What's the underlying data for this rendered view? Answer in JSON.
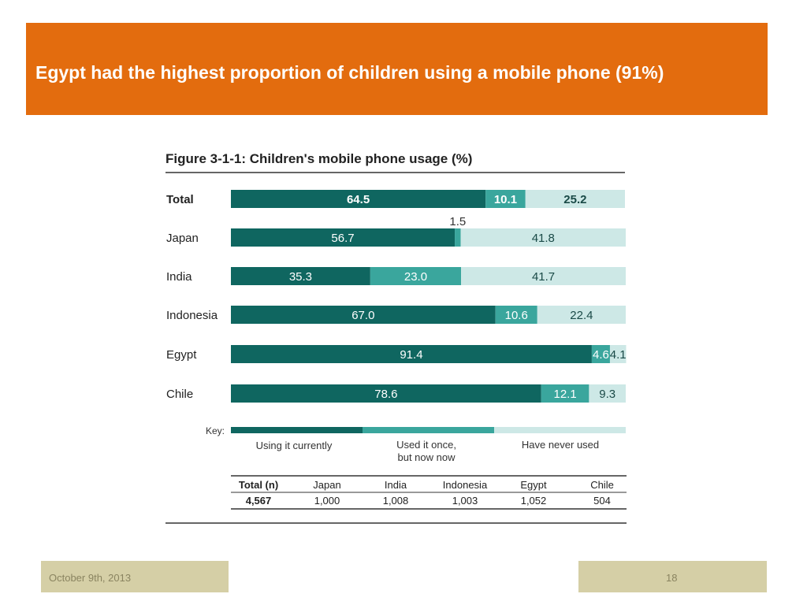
{
  "slide": {
    "title": "Egypt had the highest proportion of children using a mobile phone (91%)",
    "date": "October 9th, 2013",
    "page_number": "18"
  },
  "colors": {
    "banner": "#e36c0e",
    "current": "#0f6660",
    "once": "#3aa69d",
    "never": "#cde8e6",
    "footer": "#d5cfa6"
  },
  "chart_data": {
    "type": "bar",
    "orientation": "horizontal",
    "stacked": true,
    "title": "Figure 3-1-1: Children's mobile phone usage (%)",
    "categories": [
      "Total",
      "Japan",
      "India",
      "Indonesia",
      "Egypt",
      "Chile"
    ],
    "series": [
      {
        "name": "Using it currently",
        "values": [
          64.5,
          56.7,
          35.3,
          67.0,
          91.4,
          78.6
        ]
      },
      {
        "name": "Used it once, but now now",
        "values": [
          10.1,
          1.5,
          23.0,
          10.6,
          4.6,
          12.1
        ]
      },
      {
        "name": "Have never used",
        "values": [
          25.2,
          41.8,
          41.7,
          22.4,
          4.1,
          9.3
        ]
      }
    ],
    "data_labels": [
      [
        "64.5",
        "56.7",
        "35.3",
        "67.0",
        "91.4",
        "78.6"
      ],
      [
        "10.1",
        "1.5",
        "23.0",
        "10.6",
        "4.6",
        "12.1"
      ],
      [
        "25.2",
        "41.8",
        "41.7",
        "22.4",
        "4.1",
        "9.3"
      ]
    ],
    "xlim": [
      0,
      100
    ],
    "legend": {
      "label": "Key:",
      "entries": [
        "Using it currently",
        "Used it once,",
        "but now now",
        "Have never used"
      ],
      "placement": "bottom"
    },
    "sample_table": {
      "headers": [
        "Total (n)",
        "Japan",
        "India",
        "Indonesia",
        "Egypt",
        "Chile"
      ],
      "values": [
        "4,567",
        "1,000",
        "1,008",
        "1,003",
        "1,052",
        "504"
      ]
    }
  }
}
